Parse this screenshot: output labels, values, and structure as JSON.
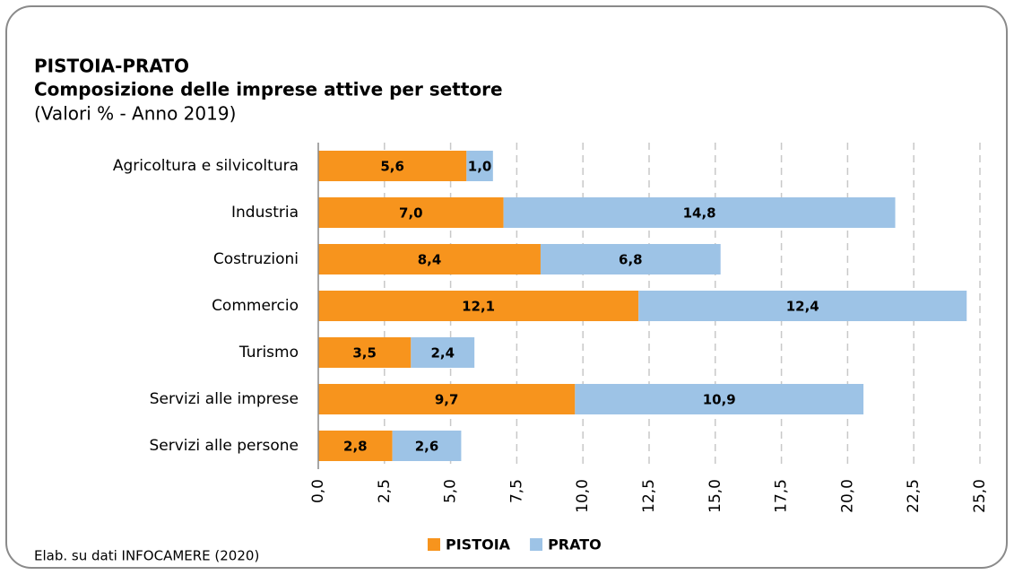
{
  "chart_data": {
    "type": "stacked_barh",
    "title": "PISTOIA-PRATO",
    "subtitle": "Composizione delle imprese attive per settore",
    "note": "(Valori % - Anno 2019)",
    "source": "Elab. su dati INFOCAMERE (2020)",
    "categories": [
      "Agricoltura e silvicoltura",
      "Industria",
      "Costruzioni",
      "Commercio",
      "Turismo",
      "Servizi alle imprese",
      "Servizi alle persone"
    ],
    "series": [
      {
        "name": "PISTOIA",
        "color": "#f7941d",
        "values": [
          5.6,
          7.0,
          8.4,
          12.1,
          3.5,
          9.7,
          2.8
        ],
        "value_labels": [
          "5,6",
          "7,0",
          "8,4",
          "12,1",
          "3,5",
          "9,7",
          "2,8"
        ]
      },
      {
        "name": "PRATO",
        "color": "#9dc3e6",
        "values": [
          1.0,
          14.8,
          6.8,
          12.4,
          2.4,
          10.9,
          2.6
        ],
        "value_labels": [
          "1,0",
          "14,8",
          "6,8",
          "12,4",
          "2,4",
          "10,9",
          "2,6"
        ]
      }
    ],
    "xlim": [
      0,
      25
    ],
    "xticks": [
      {
        "value": 0,
        "label": "0,0"
      },
      {
        "value": 2.5,
        "label": "2,5"
      },
      {
        "value": 5,
        "label": "5,0"
      },
      {
        "value": 7.5,
        "label": "7,5"
      },
      {
        "value": 10,
        "label": "10,0"
      },
      {
        "value": 12.5,
        "label": "12,5"
      },
      {
        "value": 15,
        "label": "15,0"
      },
      {
        "value": 17.5,
        "label": "17,5"
      },
      {
        "value": 20,
        "label": "20,0"
      },
      {
        "value": 22.5,
        "label": "22,5"
      },
      {
        "value": 25,
        "label": "25,0"
      }
    ],
    "grid": true,
    "legend": "bottom"
  }
}
